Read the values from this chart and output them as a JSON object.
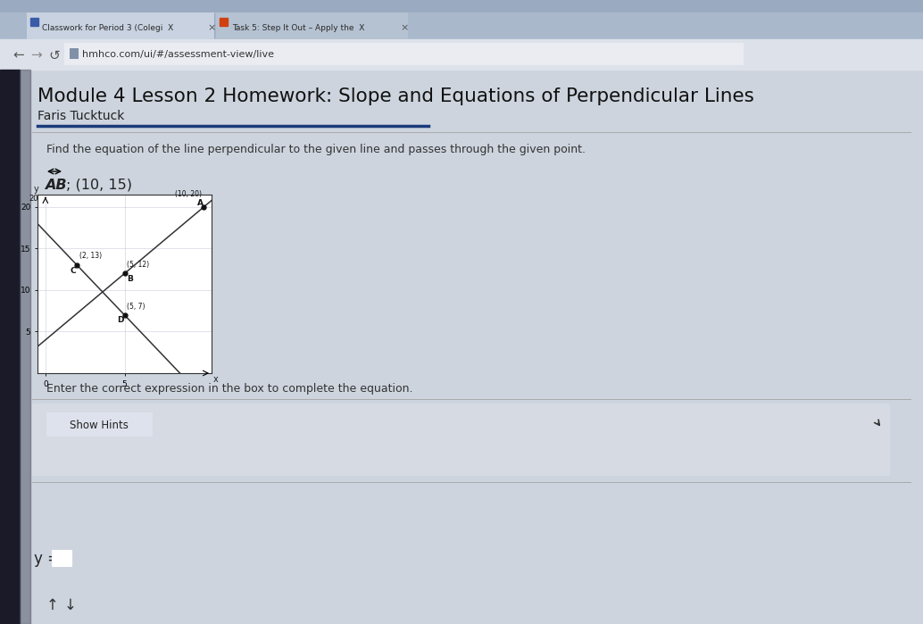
{
  "browser_tab1": "Classwork for Period 3 (Colegi  X",
  "browser_tab2": "Task 5: Step It Out – Apply the  X",
  "url": "hmhco.com/ui/#/assessment-view/live",
  "title": "Module 4 Lesson 2 Homework: Slope and Equations of Perpendicular Lines",
  "student_name": "Faris Tucktuck",
  "instruction": "Find the equation of the line perpendicular to the given line and passes through the given point.",
  "problem_label": "AB",
  "problem_point": "; (10, 15)",
  "enter_text": "Enter the correct expression in the box to complete the equation.",
  "show_hints_label": "Show Hints",
  "equation_prefix": "y =",
  "graph": {
    "points": {
      "A": [
        10,
        20
      ],
      "B": [
        5,
        12
      ],
      "C": [
        2,
        13
      ],
      "D": [
        5,
        7
      ]
    },
    "slope1": -2,
    "intercept1": 17,
    "slope2": 1.6,
    "intercept2": 4
  },
  "page_bg": "#c5cdd8",
  "content_bg": "#cdd4de",
  "browser_top_bg": "#b8c4d2",
  "tab_bar_bg": "#aab8cc",
  "tab1_bg": "#c8d2e0",
  "tab2_bg": "#b5c2d2",
  "nav_bar_bg": "#dde2ea",
  "url_bar_bg": "#eaecf2",
  "title_color": "#111111",
  "text_color": "#222222",
  "instruction_color": "#333333",
  "underline_color": "#1a3a7a",
  "graph_bg": "#ffffff",
  "line_color": "#333333",
  "point_color": "#111111",
  "hints_btn_bg": "#dde2ec",
  "hints_btn_border": "#999999",
  "answer_box_bg": "#e8ecf2",
  "white": "#ffffff",
  "dark_panel": "#1a1a28",
  "cursor_color": "#222222"
}
